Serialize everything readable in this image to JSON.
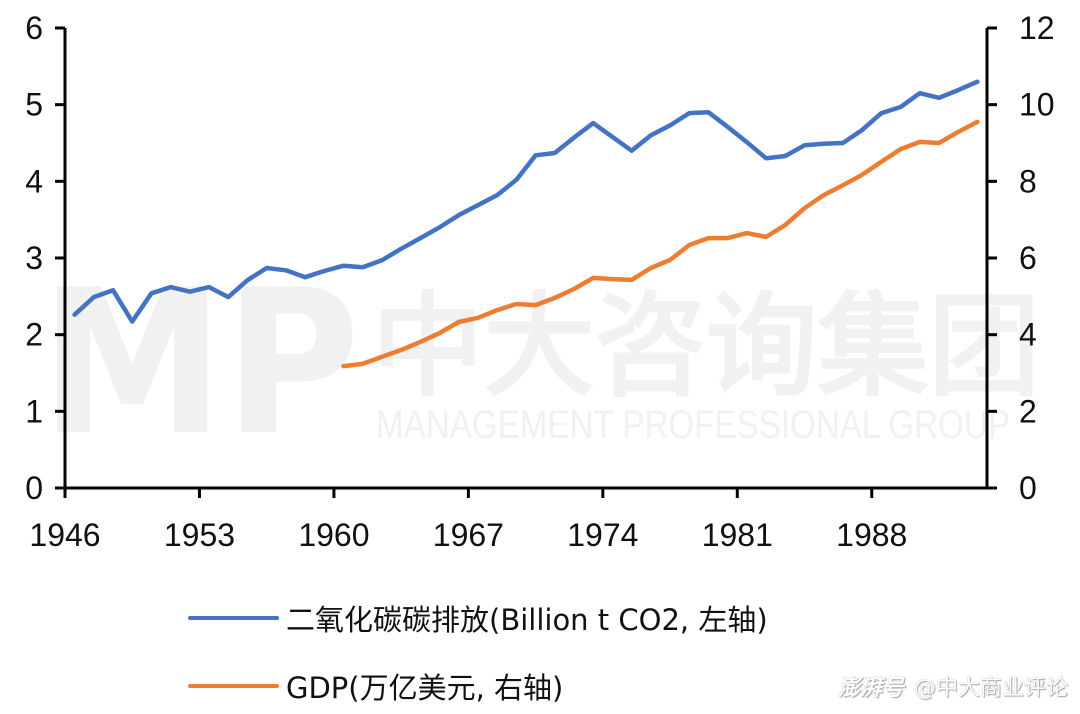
{
  "chart_data": {
    "type": "line",
    "title": "",
    "xlabel": "",
    "ylabel": "Billion t CO2",
    "y2label": "万亿美元",
    "ylim": [
      0,
      6
    ],
    "y2lim": [
      0,
      12
    ],
    "yticks": [
      0,
      1,
      2,
      3,
      4,
      5,
      6
    ],
    "y2ticks": [
      0,
      2,
      4,
      6,
      8,
      10,
      12
    ],
    "xtick_labels": [
      "1946",
      "1953",
      "1960",
      "1967",
      "1974",
      "1981",
      "1988"
    ],
    "grid": false,
    "legend_position": "bottom",
    "x": [
      1946,
      1947,
      1948,
      1949,
      1950,
      1951,
      1952,
      1953,
      1954,
      1955,
      1956,
      1957,
      1958,
      1959,
      1960,
      1961,
      1962,
      1963,
      1964,
      1965,
      1966,
      1967,
      1968,
      1969,
      1970,
      1971,
      1972,
      1973,
      1974,
      1975,
      1976,
      1977,
      1978,
      1979,
      1980,
      1981,
      1982,
      1983,
      1984,
      1985,
      1986,
      1987,
      1988,
      1989,
      1990,
      1991,
      1992,
      1993
    ],
    "series": [
      {
        "name": "二氧化碳碳排放(Billion t CO2, 左轴)",
        "axis": "left",
        "color": "#4472C4",
        "values": [
          2.26,
          2.49,
          2.58,
          2.17,
          2.54,
          2.62,
          2.56,
          2.62,
          2.49,
          2.71,
          2.87,
          2.84,
          2.75,
          2.83,
          2.9,
          2.88,
          2.97,
          3.12,
          3.26,
          3.4,
          3.56,
          3.69,
          3.82,
          4.02,
          4.34,
          4.37,
          4.57,
          4.76,
          4.58,
          4.4,
          4.6,
          4.73,
          4.89,
          4.9,
          4.71,
          4.51,
          4.3,
          4.33,
          4.47,
          4.49,
          4.5,
          4.67,
          4.89,
          4.97,
          5.15,
          5.09,
          5.19,
          5.3
        ]
      },
      {
        "name": "GDP(万亿美元, 右轴)",
        "axis": "right",
        "color": "#ED7D31",
        "values": [
          null,
          null,
          null,
          null,
          null,
          null,
          null,
          null,
          null,
          null,
          null,
          null,
          null,
          null,
          3.18,
          3.24,
          3.42,
          3.6,
          3.81,
          4.04,
          4.33,
          4.44,
          4.64,
          4.8,
          4.77,
          4.96,
          5.19,
          5.48,
          5.45,
          5.43,
          5.74,
          5.95,
          6.34,
          6.52,
          6.52,
          6.65,
          6.55,
          6.86,
          7.3,
          7.64,
          7.9,
          8.17,
          8.51,
          8.84,
          9.03,
          9.0,
          9.29,
          9.55
        ]
      }
    ]
  },
  "watermark": {
    "logo": "MP",
    "company_cn": "中大咨询集团",
    "company_en": "MANAGEMENT PROFESSIONAL GROUP"
  },
  "credit": {
    "brand": "澎湃号",
    "handle": "@中大商业评论"
  }
}
